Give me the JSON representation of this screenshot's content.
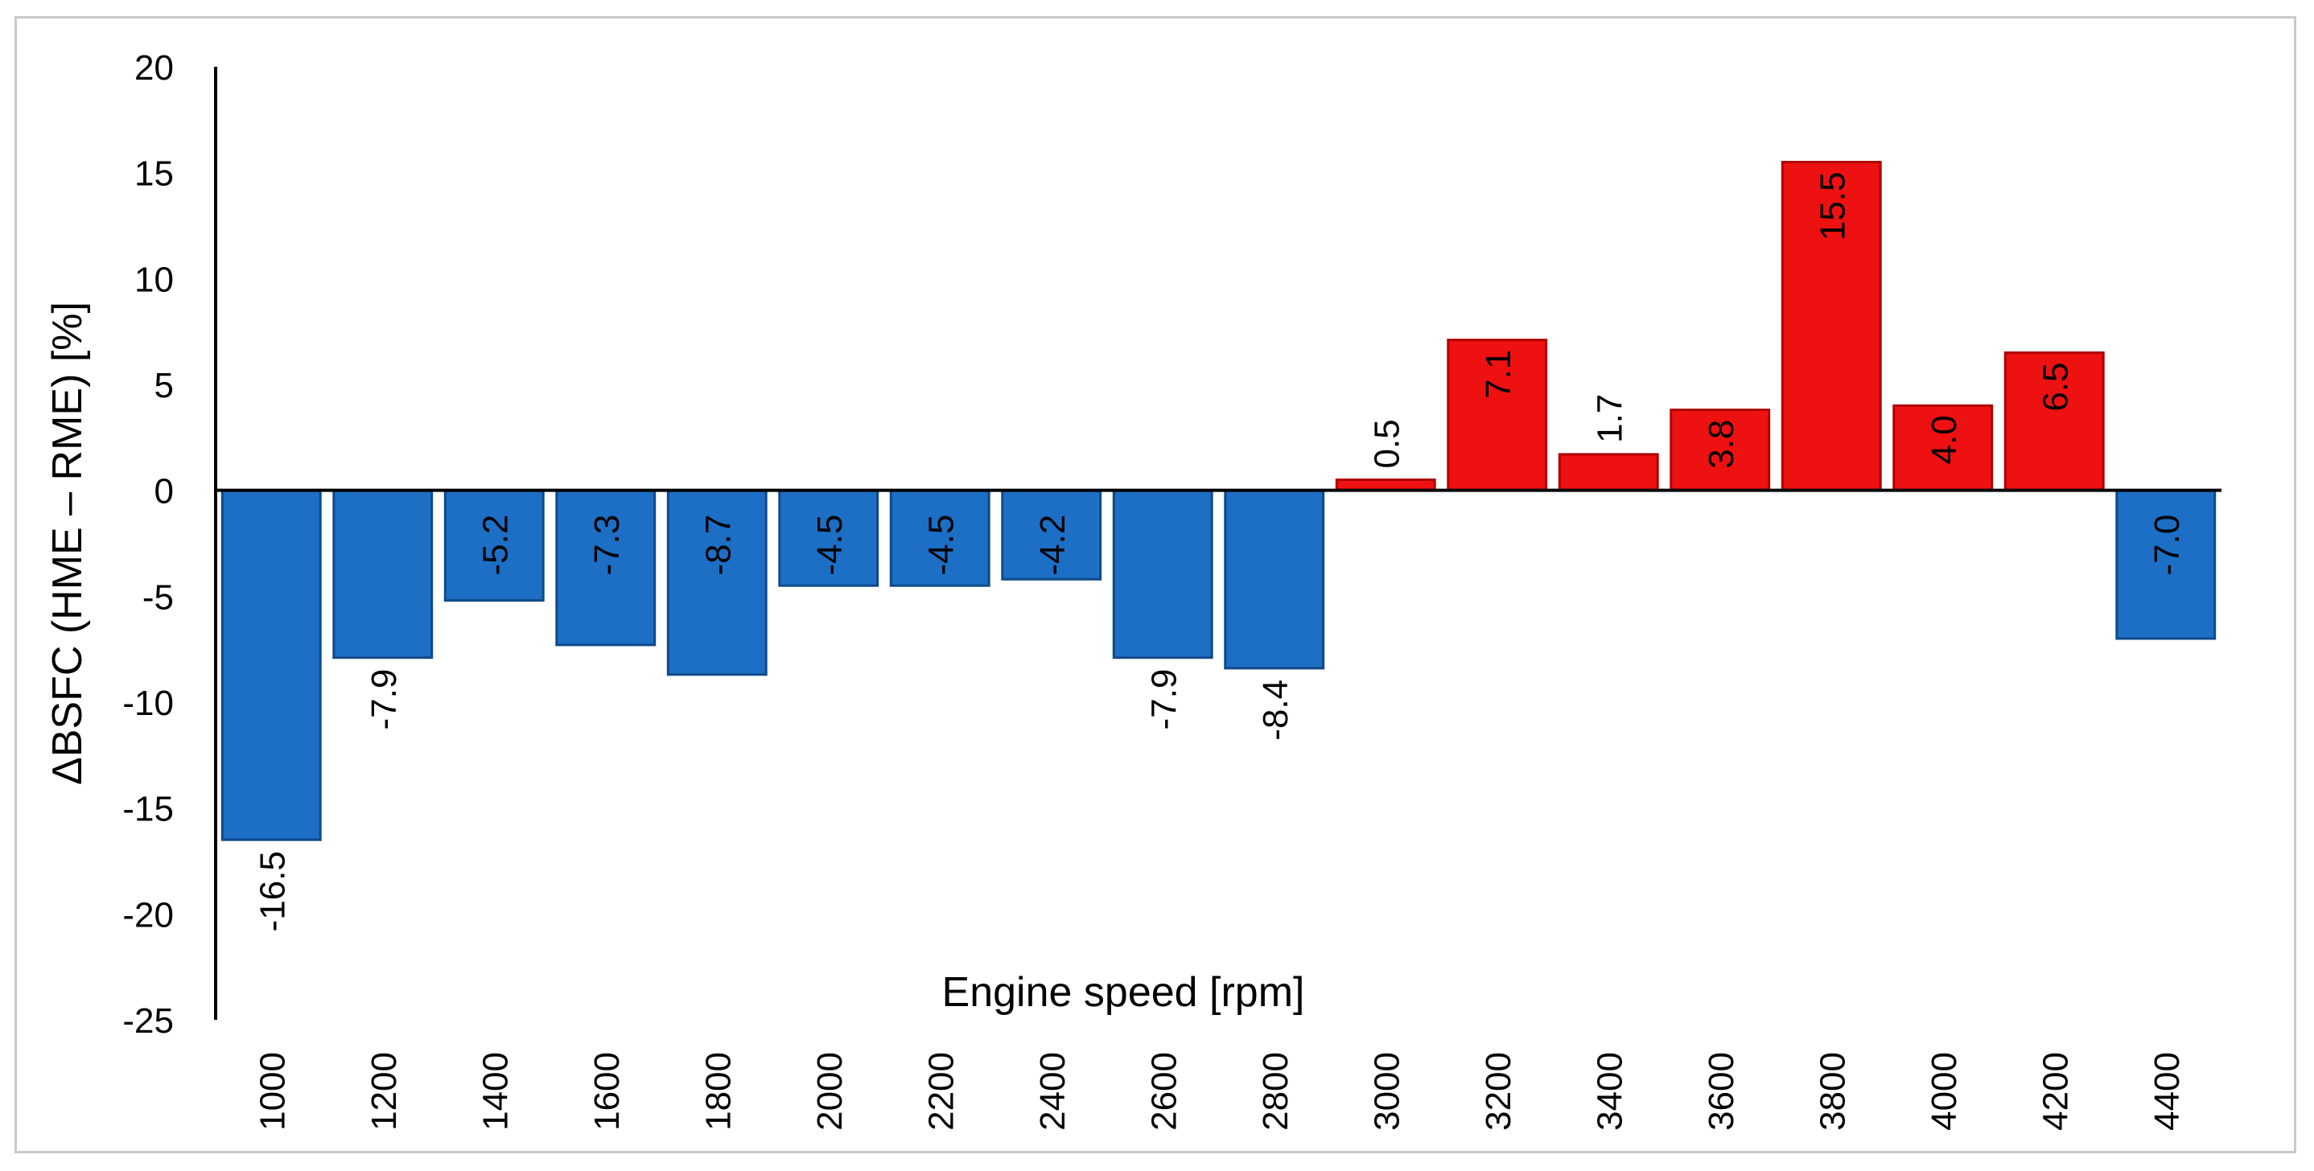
{
  "chart_data": {
    "type": "bar",
    "title": "",
    "xlabel": "Engine speed [rpm]",
    "ylabel": "ΔBSFC (HME – RME) [%]",
    "ylim": [
      -25,
      20
    ],
    "yticks": [
      20,
      15,
      10,
      5,
      0,
      -5,
      -10,
      -15,
      -20,
      -25
    ],
    "ytick_labels": [
      "20",
      "15",
      "10",
      "5",
      "0",
      "-5",
      "-10",
      "-15",
      "-20",
      "-25"
    ],
    "grid": false,
    "legend": "none",
    "categories": [
      "1000",
      "1200",
      "1400",
      "1600",
      "1800",
      "2000",
      "2200",
      "2400",
      "2600",
      "2800",
      "3000",
      "3200",
      "3400",
      "3600",
      "3800",
      "4000",
      "4200",
      "4400"
    ],
    "values": [
      -16.5,
      -7.9,
      -5.2,
      -7.3,
      -8.7,
      -4.5,
      -4.5,
      -4.2,
      -7.9,
      -8.4,
      0.5,
      7.1,
      1.7,
      3.8,
      15.5,
      4.0,
      6.5,
      -7.0
    ],
    "value_labels": [
      "-16.5",
      "-7.9",
      "-5.2",
      "-7.3",
      "-8.7",
      "-4.5",
      "-4.5",
      "-4.2",
      "-7.9",
      "-8.4",
      "0.5",
      "7.1",
      "1.7",
      "3.8",
      "15.5",
      "4.0",
      "6.5",
      "-7.0"
    ],
    "colors": {
      "negative": "#1c6fc4",
      "negative_stroke": "#0f4a8a",
      "positive": "#ee1111",
      "positive_stroke": "#b00000",
      "axis": "#000000"
    }
  }
}
